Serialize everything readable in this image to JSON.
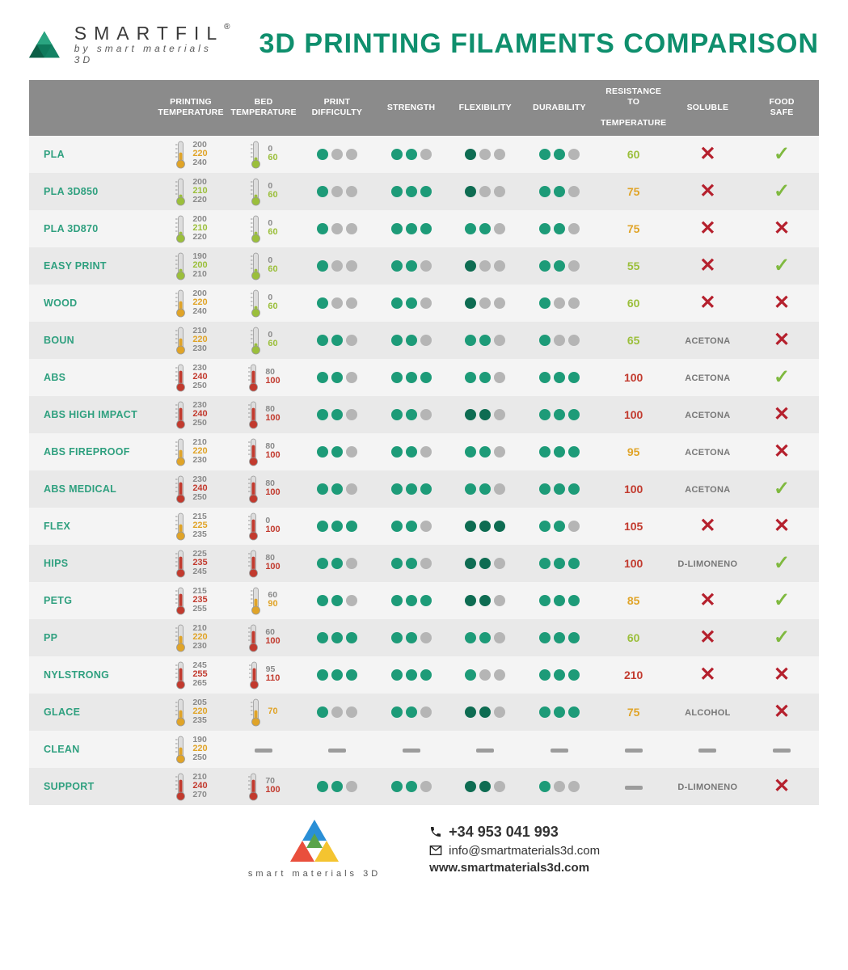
{
  "brand": {
    "name": "SMARTFIL",
    "reg": "®",
    "tagline": "by smart materials 3D"
  },
  "title": "3D PRINTING FILAMENTS COMPARISON",
  "colors": {
    "title": "#0f8f6d",
    "headerBg": "#8b8b8b",
    "rowOdd": "#f4f4f4",
    "rowEven": "#e9e9e9",
    "dotFill": "#1d9b78",
    "dotFillDark": "#0e6c52",
    "dotEmpty": "#b5b5b5",
    "check": "#7fb93f",
    "cross": "#b5202d",
    "dash": "#9c9c9c",
    "tempLow": "#9bbf3b",
    "tempMed": "#e0a428",
    "tempHigh": "#c23a2e",
    "tempGrey": "#8a8a8a",
    "labelGreen": "#2fa07f",
    "solText": "#777"
  },
  "columns": [
    "",
    "PRINTING TEMPERATURE",
    "BED TEMPERATURE",
    "PRINT DIFFICULTY",
    "STRENGTH",
    "FLEXIBILITY",
    "DURABILITY",
    "RESISTANCE TO TEMPERATURE",
    "SOLUBLE",
    "FOOD SAFE"
  ],
  "rows": [
    {
      "name": "PLA",
      "pt": {
        "lo": 200,
        "mid": 220,
        "hi": 240,
        "heat": "med"
      },
      "bt": {
        "lo": 0,
        "mid": 60,
        "hi": null,
        "heat": "low"
      },
      "diff": [
        1,
        0,
        0
      ],
      "str": [
        1,
        1,
        0
      ],
      "flex": [
        2,
        0,
        0
      ],
      "dur": [
        1,
        1,
        0
      ],
      "rt": {
        "v": 60,
        "heat": "low"
      },
      "sol": "cross",
      "food": "check"
    },
    {
      "name": "PLA 3D850",
      "pt": {
        "lo": 200,
        "mid": 210,
        "hi": 220,
        "heat": "low"
      },
      "bt": {
        "lo": 0,
        "mid": 60,
        "hi": null,
        "heat": "low"
      },
      "diff": [
        1,
        0,
        0
      ],
      "str": [
        1,
        1,
        1
      ],
      "flex": [
        2,
        0,
        0
      ],
      "dur": [
        1,
        1,
        0
      ],
      "rt": {
        "v": 75,
        "heat": "med"
      },
      "sol": "cross",
      "food": "check"
    },
    {
      "name": "PLA 3D870",
      "pt": {
        "lo": 200,
        "mid": 210,
        "hi": 220,
        "heat": "low"
      },
      "bt": {
        "lo": 0,
        "mid": 60,
        "hi": null,
        "heat": "low"
      },
      "diff": [
        1,
        0,
        0
      ],
      "str": [
        1,
        1,
        1
      ],
      "flex": [
        1,
        1,
        0
      ],
      "dur": [
        1,
        1,
        0
      ],
      "rt": {
        "v": 75,
        "heat": "med"
      },
      "sol": "cross",
      "food": "cross"
    },
    {
      "name": "EASY PRINT",
      "pt": {
        "lo": 190,
        "mid": 200,
        "hi": 210,
        "heat": "low"
      },
      "bt": {
        "lo": 0,
        "mid": 60,
        "hi": null,
        "heat": "low"
      },
      "diff": [
        1,
        0,
        0
      ],
      "str": [
        1,
        1,
        0
      ],
      "flex": [
        2,
        0,
        0
      ],
      "dur": [
        1,
        1,
        0
      ],
      "rt": {
        "v": 55,
        "heat": "low"
      },
      "sol": "cross",
      "food": "check"
    },
    {
      "name": "WOOD",
      "pt": {
        "lo": 200,
        "mid": 220,
        "hi": 240,
        "heat": "med"
      },
      "bt": {
        "lo": 0,
        "mid": 60,
        "hi": null,
        "heat": "low"
      },
      "diff": [
        1,
        0,
        0
      ],
      "str": [
        1,
        1,
        0
      ],
      "flex": [
        2,
        0,
        0
      ],
      "dur": [
        1,
        0,
        0
      ],
      "rt": {
        "v": 60,
        "heat": "low"
      },
      "sol": "cross",
      "food": "cross"
    },
    {
      "name": "BOUN",
      "pt": {
        "lo": 210,
        "mid": 220,
        "hi": 230,
        "heat": "med"
      },
      "bt": {
        "lo": 0,
        "mid": 60,
        "hi": null,
        "heat": "low"
      },
      "diff": [
        1,
        1,
        0
      ],
      "str": [
        1,
        1,
        0
      ],
      "flex": [
        1,
        1,
        0
      ],
      "dur": [
        1,
        0,
        0
      ],
      "rt": {
        "v": 65,
        "heat": "low"
      },
      "sol": "ACETONA",
      "food": "cross"
    },
    {
      "name": "ABS",
      "pt": {
        "lo": 230,
        "mid": 240,
        "hi": 250,
        "heat": "high"
      },
      "bt": {
        "lo": 80,
        "mid": 100,
        "hi": null,
        "heat": "high"
      },
      "diff": [
        1,
        1,
        0
      ],
      "str": [
        1,
        1,
        1
      ],
      "flex": [
        1,
        1,
        0
      ],
      "dur": [
        1,
        1,
        1
      ],
      "rt": {
        "v": 100,
        "heat": "high"
      },
      "sol": "ACETONA",
      "food": "check"
    },
    {
      "name": "ABS HIGH IMPACT",
      "pt": {
        "lo": 230,
        "mid": 240,
        "hi": 250,
        "heat": "high"
      },
      "bt": {
        "lo": 80,
        "mid": 100,
        "hi": null,
        "heat": "high"
      },
      "diff": [
        1,
        1,
        0
      ],
      "str": [
        1,
        1,
        0
      ],
      "flex": [
        2,
        2,
        0
      ],
      "dur": [
        1,
        1,
        1
      ],
      "rt": {
        "v": 100,
        "heat": "high"
      },
      "sol": "ACETONA",
      "food": "cross"
    },
    {
      "name": "ABS FIREPROOF",
      "pt": {
        "lo": 210,
        "mid": 220,
        "hi": 230,
        "heat": "med"
      },
      "bt": {
        "lo": 80,
        "mid": 100,
        "hi": null,
        "heat": "high"
      },
      "diff": [
        1,
        1,
        0
      ],
      "str": [
        1,
        1,
        0
      ],
      "flex": [
        1,
        1,
        0
      ],
      "dur": [
        1,
        1,
        1
      ],
      "rt": {
        "v": 95,
        "heat": "med"
      },
      "sol": "ACETONA",
      "food": "cross"
    },
    {
      "name": "ABS MEDICAL",
      "pt": {
        "lo": 230,
        "mid": 240,
        "hi": 250,
        "heat": "high"
      },
      "bt": {
        "lo": 80,
        "mid": 100,
        "hi": null,
        "heat": "high"
      },
      "diff": [
        1,
        1,
        0
      ],
      "str": [
        1,
        1,
        1
      ],
      "flex": [
        1,
        1,
        0
      ],
      "dur": [
        1,
        1,
        1
      ],
      "rt": {
        "v": 100,
        "heat": "high"
      },
      "sol": "ACETONA",
      "food": "check"
    },
    {
      "name": "FLEX",
      "pt": {
        "lo": 215,
        "mid": 225,
        "hi": 235,
        "heat": "med"
      },
      "bt": {
        "lo": 0,
        "mid": 100,
        "hi": null,
        "heat": "high"
      },
      "diff": [
        1,
        1,
        1
      ],
      "str": [
        1,
        1,
        0
      ],
      "flex": [
        2,
        2,
        2
      ],
      "dur": [
        1,
        1,
        0
      ],
      "rt": {
        "v": 105,
        "heat": "high"
      },
      "sol": "cross",
      "food": "cross"
    },
    {
      "name": "HIPS",
      "pt": {
        "lo": 225,
        "mid": 235,
        "hi": 245,
        "heat": "high"
      },
      "bt": {
        "lo": 80,
        "mid": 100,
        "hi": null,
        "heat": "high"
      },
      "diff": [
        1,
        1,
        0
      ],
      "str": [
        1,
        1,
        0
      ],
      "flex": [
        2,
        2,
        0
      ],
      "dur": [
        1,
        1,
        1
      ],
      "rt": {
        "v": 100,
        "heat": "high"
      },
      "sol": "D-LIMONENO",
      "food": "check"
    },
    {
      "name": "PETG",
      "pt": {
        "lo": 215,
        "mid": 235,
        "hi": 255,
        "heat": "high"
      },
      "bt": {
        "lo": 60,
        "mid": 90,
        "hi": null,
        "heat": "med"
      },
      "diff": [
        1,
        1,
        0
      ],
      "str": [
        1,
        1,
        1
      ],
      "flex": [
        2,
        2,
        0
      ],
      "dur": [
        1,
        1,
        1
      ],
      "rt": {
        "v": 85,
        "heat": "med"
      },
      "sol": "cross",
      "food": "check"
    },
    {
      "name": "PP",
      "pt": {
        "lo": 210,
        "mid": 220,
        "hi": 230,
        "heat": "med"
      },
      "bt": {
        "lo": 60,
        "mid": 100,
        "hi": null,
        "heat": "high"
      },
      "diff": [
        1,
        1,
        1
      ],
      "str": [
        1,
        1,
        0
      ],
      "flex": [
        1,
        1,
        0
      ],
      "dur": [
        1,
        1,
        1
      ],
      "rt": {
        "v": 60,
        "heat": "low"
      },
      "sol": "cross",
      "food": "check"
    },
    {
      "name": "NYLSTRONG",
      "pt": {
        "lo": 245,
        "mid": 255,
        "hi": 265,
        "heat": "high"
      },
      "bt": {
        "lo": 95,
        "mid": 110,
        "hi": null,
        "heat": "high"
      },
      "diff": [
        1,
        1,
        1
      ],
      "str": [
        1,
        1,
        1
      ],
      "flex": [
        1,
        0,
        0
      ],
      "dur": [
        1,
        1,
        1
      ],
      "rt": {
        "v": 210,
        "heat": "high"
      },
      "sol": "cross",
      "food": "cross"
    },
    {
      "name": "GLACE",
      "pt": {
        "lo": 205,
        "mid": 220,
        "hi": 235,
        "heat": "med"
      },
      "bt": {
        "lo": null,
        "mid": 70,
        "hi": null,
        "heat": "med"
      },
      "diff": [
        1,
        0,
        0
      ],
      "str": [
        1,
        1,
        0
      ],
      "flex": [
        2,
        2,
        0
      ],
      "dur": [
        1,
        1,
        1
      ],
      "rt": {
        "v": 75,
        "heat": "med"
      },
      "sol": "ALCOHOL",
      "food": "cross"
    },
    {
      "name": "CLEAN",
      "pt": {
        "lo": 190,
        "mid": 220,
        "hi": 250,
        "heat": "med"
      },
      "bt": "dash",
      "diff": "dash",
      "str": "dash",
      "flex": "dash",
      "dur": "dash",
      "rt": "dash",
      "sol": "dash",
      "food": "dash"
    },
    {
      "name": "SUPPORT",
      "pt": {
        "lo": 210,
        "mid": 240,
        "hi": 270,
        "heat": "high"
      },
      "bt": {
        "lo": 70,
        "mid": 100,
        "hi": null,
        "heat": "high"
      },
      "diff": [
        1,
        1,
        0
      ],
      "str": [
        1,
        1,
        0
      ],
      "flex": [
        2,
        2,
        0
      ],
      "dur": [
        1,
        0,
        0
      ],
      "rt": "dash",
      "sol": "D-LIMONENO",
      "food": "cross"
    }
  ],
  "footer": {
    "brand": "smart materials 3D",
    "phone": "+34 953 041 993",
    "email": "info@smartmaterials3d.com",
    "web": "www.smartmaterials3d.com"
  }
}
